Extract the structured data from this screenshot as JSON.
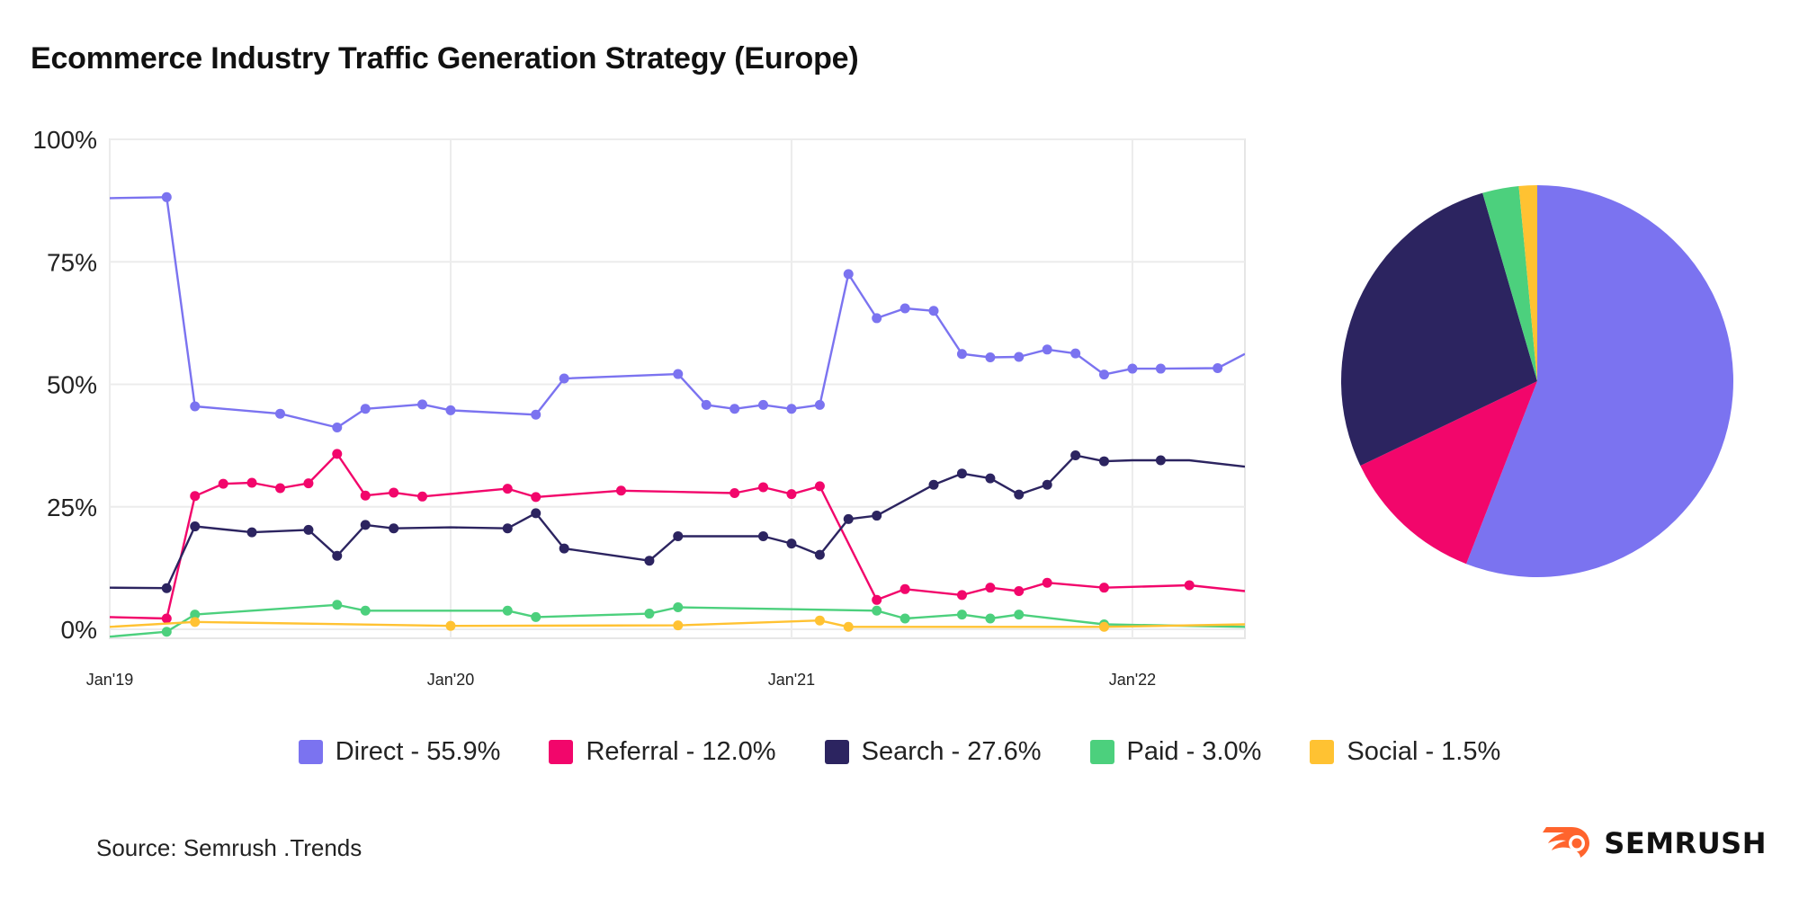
{
  "title": "Ecommerce Industry Traffic Generation Strategy (Europe)",
  "source": "Source: Semrush .Trends",
  "brand": "SEMRUSH",
  "legend": [
    {
      "label": "Direct - 55.9%",
      "color": "#7B73F0"
    },
    {
      "label": "Referral - 12.0%",
      "color": "#F2066B"
    },
    {
      "label": "Search - 27.6%",
      "color": "#2C2460"
    },
    {
      "label": "Paid - 3.0%",
      "color": "#4CD07D"
    },
    {
      "label": "Social - 1.5%",
      "color": "#FFC232"
    }
  ],
  "chart_data": [
    {
      "type": "line",
      "ylim": [
        0,
        100
      ],
      "yticks": [
        0,
        25,
        50,
        75,
        100
      ],
      "ytick_labels": [
        "0%",
        "25%",
        "50%",
        "75%",
        "100%"
      ],
      "xlim": [
        2019.0,
        2022.33
      ],
      "xticks": [
        2019.0,
        2020.0,
        2021.0,
        2022.0
      ],
      "xtick_labels": [
        "Jan'19",
        "Jan'20",
        "Jan'21",
        "Jan'22"
      ],
      "grid": true,
      "series": [
        {
          "name": "Direct",
          "color": "#7B73F0",
          "x": [
            2019.0,
            2019.167,
            2019.25,
            2019.5,
            2019.667,
            2019.75,
            2019.917,
            2020.0,
            2020.25,
            2020.333,
            2020.667,
            2020.75,
            2020.833,
            2020.917,
            2021.0,
            2021.083,
            2021.167,
            2021.25,
            2021.333,
            2021.417,
            2021.5,
            2021.583,
            2021.667,
            2021.75,
            2021.833,
            2021.917,
            2022.0,
            2022.083,
            2022.25,
            2022.33
          ],
          "y": [
            88.0,
            88.2,
            45.5,
            44.0,
            41.2,
            45.0,
            45.9,
            44.7,
            43.8,
            51.2,
            52.1,
            45.8,
            45.0,
            45.8,
            45.0,
            45.8,
            72.5,
            63.5,
            65.5,
            65.0,
            56.2,
            55.5,
            55.6,
            57.1,
            56.3,
            52.0,
            53.2,
            53.2,
            53.3,
            56.2
          ],
          "markers": [
            false,
            true,
            true,
            true,
            true,
            true,
            true,
            true,
            true,
            true,
            true,
            true,
            true,
            true,
            true,
            true,
            true,
            true,
            true,
            true,
            true,
            true,
            true,
            true,
            true,
            true,
            true,
            true,
            true,
            false
          ]
        },
        {
          "name": "Referral",
          "color": "#F2066B",
          "x": [
            2019.0,
            2019.167,
            2019.25,
            2019.333,
            2019.417,
            2019.5,
            2019.583,
            2019.667,
            2019.75,
            2019.833,
            2019.917,
            2020.167,
            2020.25,
            2020.5,
            2020.833,
            2020.917,
            2021.0,
            2021.083,
            2021.25,
            2021.333,
            2021.5,
            2021.583,
            2021.667,
            2021.75,
            2021.917,
            2022.167,
            2022.33
          ],
          "y": [
            2.5,
            2.2,
            27.2,
            29.7,
            29.9,
            28.8,
            29.8,
            35.8,
            27.3,
            27.9,
            27.1,
            28.7,
            27.0,
            28.3,
            27.8,
            29.0,
            27.6,
            29.2,
            6.0,
            8.2,
            7.0,
            8.5,
            7.8,
            9.5,
            8.5,
            9.0,
            7.8
          ],
          "markers": [
            false,
            true,
            true,
            true,
            true,
            true,
            true,
            true,
            true,
            true,
            true,
            true,
            true,
            true,
            true,
            true,
            true,
            true,
            true,
            true,
            true,
            true,
            true,
            true,
            true,
            true,
            false
          ]
        },
        {
          "name": "Search",
          "color": "#2C2460",
          "x": [
            2019.0,
            2019.167,
            2019.25,
            2019.417,
            2019.583,
            2019.667,
            2019.75,
            2019.833,
            2020.0,
            2020.167,
            2020.25,
            2020.333,
            2020.583,
            2020.667,
            2020.75,
            2020.917,
            2021.0,
            2021.083,
            2021.167,
            2021.25,
            2021.417,
            2021.5,
            2021.583,
            2021.667,
            2021.75,
            2021.833,
            2021.917,
            2022.0,
            2022.083,
            2022.167,
            2022.33
          ],
          "y": [
            8.5,
            8.4,
            21.0,
            19.8,
            20.3,
            15.0,
            21.3,
            20.6,
            20.8,
            20.6,
            23.7,
            16.5,
            14.0,
            19.0,
            19.0,
            19.0,
            17.5,
            15.2,
            22.5,
            23.2,
            29.5,
            31.8,
            30.8,
            27.5,
            29.5,
            35.5,
            34.3,
            34.5,
            34.5,
            34.5,
            33.2
          ],
          "markers": [
            false,
            true,
            true,
            true,
            true,
            true,
            true,
            true,
            false,
            true,
            true,
            true,
            true,
            true,
            false,
            true,
            true,
            true,
            true,
            true,
            true,
            true,
            true,
            true,
            true,
            true,
            true,
            false,
            true,
            false,
            false
          ]
        },
        {
          "name": "Paid",
          "color": "#4CD07D",
          "x": [
            2019.0,
            2019.167,
            2019.25,
            2019.667,
            2019.75,
            2020.167,
            2020.25,
            2020.583,
            2020.667,
            2021.25,
            2021.333,
            2021.5,
            2021.583,
            2021.667,
            2021.917,
            2022.33
          ],
          "y": [
            -1.5,
            -0.5,
            3.0,
            5.0,
            3.8,
            3.8,
            2.5,
            3.2,
            4.5,
            3.8,
            2.2,
            3.0,
            2.2,
            3.0,
            1.0,
            0.5
          ],
          "markers": [
            false,
            true,
            true,
            true,
            true,
            true,
            true,
            true,
            true,
            true,
            true,
            true,
            true,
            true,
            true,
            false
          ]
        },
        {
          "name": "Social",
          "color": "#FFC232",
          "x": [
            2019.0,
            2019.25,
            2020.0,
            2020.667,
            2021.083,
            2021.167,
            2021.917,
            2022.33
          ],
          "y": [
            0.5,
            1.5,
            0.7,
            0.8,
            1.8,
            0.5,
            0.5,
            1.0
          ],
          "markers": [
            false,
            true,
            true,
            true,
            true,
            true,
            true,
            false
          ]
        }
      ]
    },
    {
      "type": "pie",
      "slices": [
        {
          "name": "Direct",
          "value": 55.9,
          "color": "#7B73F0"
        },
        {
          "name": "Referral",
          "value": 12.0,
          "color": "#F2066B"
        },
        {
          "name": "Search",
          "value": 27.6,
          "color": "#2C2460"
        },
        {
          "name": "Paid",
          "value": 3.0,
          "color": "#4CD07D"
        },
        {
          "name": "Social",
          "value": 1.5,
          "color": "#FFC232"
        }
      ]
    }
  ]
}
